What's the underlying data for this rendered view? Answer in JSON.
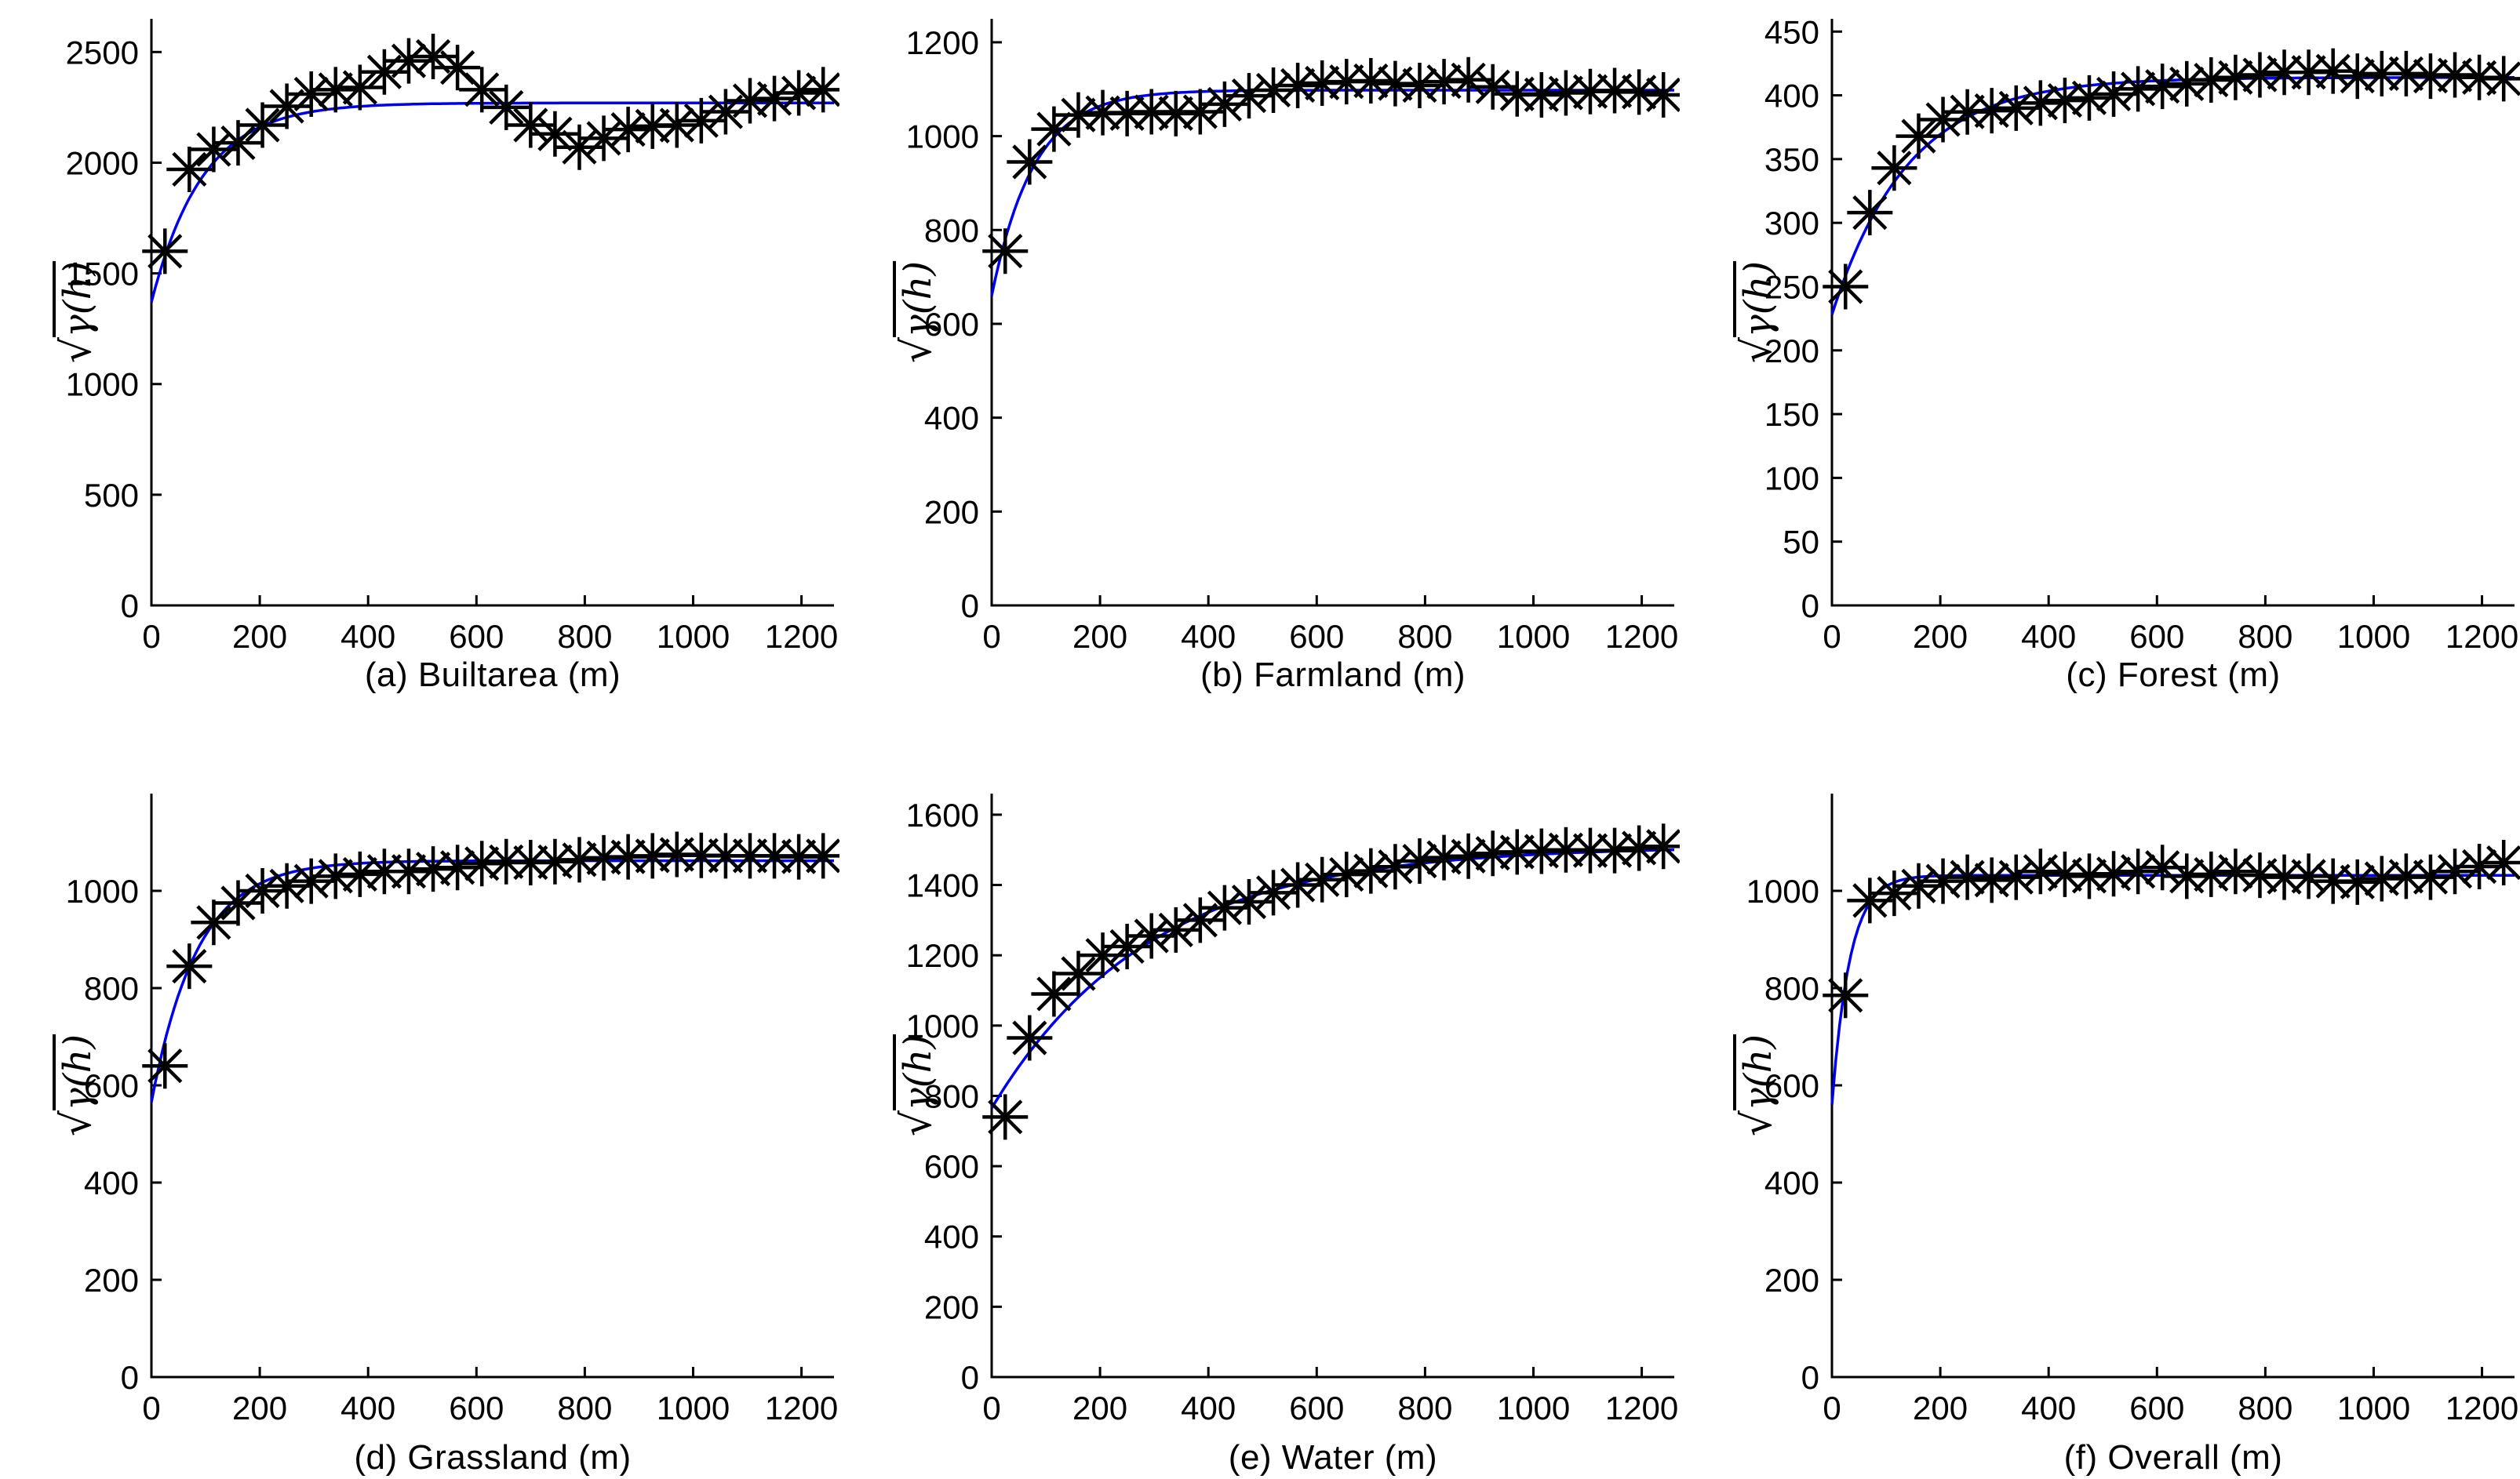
{
  "figure": {
    "background": "#ffffff",
    "description": "Six square-root semivariogram subplots with experimental points (black asterisks) and fitted exponential models (blue curves)"
  },
  "style": {
    "axis_color": "#000000",
    "tick_label_color": "#000000",
    "marker_color": "#000000",
    "fit_line_color": "#0000ee"
  },
  "chart_data": [
    {
      "id": "a",
      "type": "scatter",
      "caption": "(a) Builtarea (m)",
      "ylabel": {
        "radical": "√",
        "expr": "γ(h)"
      },
      "legend": "none",
      "grid": false,
      "xlim": [
        0,
        1260
      ],
      "ylim": [
        0,
        2650
      ],
      "x_ticks": [
        0,
        200,
        400,
        600,
        800,
        1000,
        1200
      ],
      "y_ticks": [
        0,
        500,
        1000,
        1500,
        2000,
        2500
      ],
      "x": [
        25,
        70,
        115,
        160,
        205,
        250,
        295,
        340,
        385,
        430,
        475,
        520,
        565,
        610,
        655,
        700,
        745,
        790,
        835,
        880,
        925,
        970,
        1015,
        1060,
        1105,
        1150,
        1195,
        1240
      ],
      "y": [
        1600,
        1970,
        2060,
        2090,
        2170,
        2255,
        2310,
        2330,
        2340,
        2410,
        2460,
        2480,
        2430,
        2330,
        2250,
        2170,
        2130,
        2070,
        2110,
        2150,
        2165,
        2170,
        2190,
        2230,
        2280,
        2290,
        2315,
        2330
      ],
      "fit": {
        "model": "exponential",
        "y0": 1370,
        "sill": 2270,
        "tau": 95
      }
    },
    {
      "id": "b",
      "type": "scatter",
      "caption": "(b) Farmland (m)",
      "ylabel": {
        "radical": "√",
        "expr": "γ(h)"
      },
      "legend": "none",
      "grid": false,
      "xlim": [
        0,
        1260
      ],
      "ylim": [
        0,
        1250
      ],
      "x_ticks": [
        0,
        200,
        400,
        600,
        800,
        1000,
        1200
      ],
      "y_ticks": [
        0,
        200,
        400,
        600,
        800,
        1000,
        1200
      ],
      "x": [
        25,
        70,
        115,
        160,
        205,
        250,
        295,
        340,
        385,
        430,
        475,
        520,
        565,
        610,
        655,
        700,
        745,
        790,
        835,
        880,
        925,
        970,
        1015,
        1060,
        1105,
        1150,
        1195,
        1240
      ],
      "y": [
        755,
        945,
        1015,
        1045,
        1050,
        1048,
        1052,
        1048,
        1052,
        1068,
        1086,
        1098,
        1108,
        1113,
        1116,
        1118,
        1112,
        1108,
        1116,
        1120,
        1105,
        1090,
        1088,
        1092,
        1095,
        1097,
        1094,
        1088
      ],
      "fit": {
        "model": "exponential",
        "y0": 660,
        "sill": 1098,
        "tau": 78
      }
    },
    {
      "id": "c",
      "type": "scatter",
      "caption": "(c) Forest (m)",
      "ylabel": {
        "radical": "√",
        "expr": "γ(h)"
      },
      "legend": "none",
      "grid": false,
      "xlim": [
        0,
        1260
      ],
      "ylim": [
        0,
        460
      ],
      "x_ticks": [
        0,
        200,
        400,
        600,
        800,
        1000,
        1200
      ],
      "y_ticks": [
        0,
        50,
        100,
        150,
        200,
        250,
        300,
        350,
        400,
        450
      ],
      "x": [
        25,
        70,
        115,
        160,
        205,
        250,
        295,
        340,
        385,
        430,
        475,
        520,
        565,
        610,
        655,
        700,
        745,
        790,
        835,
        880,
        925,
        970,
        1015,
        1060,
        1105,
        1150,
        1195,
        1240
      ],
      "y": [
        250,
        308,
        343,
        368,
        381,
        387,
        388,
        390,
        394,
        396,
        398,
        401,
        405,
        407,
        409,
        412,
        414,
        416,
        418,
        418,
        419,
        415,
        417,
        417,
        415,
        416,
        414,
        413
      ],
      "fit": {
        "model": "exponential",
        "y0": 228,
        "sill": 414,
        "tau": 140
      }
    },
    {
      "id": "d",
      "type": "scatter",
      "caption": "(d) Grassland (m)",
      "ylabel": {
        "radical": "√",
        "expr": "γ(h)"
      },
      "legend": "none",
      "grid": false,
      "xlim": [
        0,
        1260
      ],
      "ylim": [
        0,
        1200
      ],
      "x_ticks": [
        0,
        200,
        400,
        600,
        800,
        1000,
        1200
      ],
      "y_ticks": [
        0,
        200,
        400,
        600,
        800,
        1000
      ],
      "x": [
        25,
        70,
        115,
        160,
        205,
        250,
        295,
        340,
        385,
        430,
        475,
        520,
        565,
        610,
        655,
        700,
        745,
        790,
        835,
        880,
        925,
        970,
        1015,
        1060,
        1105,
        1150,
        1195,
        1240
      ],
      "y": [
        640,
        845,
        935,
        975,
        1000,
        1010,
        1020,
        1030,
        1034,
        1040,
        1040,
        1045,
        1048,
        1056,
        1060,
        1058,
        1060,
        1064,
        1068,
        1070,
        1072,
        1075,
        1073,
        1072,
        1072,
        1072,
        1070,
        1072
      ],
      "fit": {
        "model": "exponential",
        "y0": 565,
        "sill": 1062,
        "tau": 85
      }
    },
    {
      "id": "e",
      "type": "scatter",
      "caption": "(e) Water (m)",
      "ylabel": {
        "radical": "√",
        "expr": "γ(h)"
      },
      "legend": "none",
      "grid": false,
      "xlim": [
        0,
        1260
      ],
      "ylim": [
        0,
        1660
      ],
      "x_ticks": [
        0,
        200,
        400,
        600,
        800,
        1000,
        1200
      ],
      "y_ticks": [
        0,
        200,
        400,
        600,
        800,
        1000,
        1200,
        1400,
        1600
      ],
      "x": [
        25,
        70,
        115,
        160,
        205,
        250,
        295,
        340,
        385,
        430,
        475,
        520,
        565,
        610,
        655,
        700,
        745,
        790,
        835,
        880,
        925,
        970,
        1015,
        1060,
        1105,
        1150,
        1195,
        1240
      ],
      "y": [
        740,
        965,
        1090,
        1148,
        1200,
        1225,
        1255,
        1272,
        1300,
        1335,
        1352,
        1378,
        1400,
        1415,
        1430,
        1440,
        1452,
        1468,
        1478,
        1482,
        1490,
        1494,
        1496,
        1500,
        1498,
        1498,
        1505,
        1510
      ],
      "fit": {
        "model": "exponential",
        "y0": 765,
        "sill": 1510,
        "tau": 290
      }
    },
    {
      "id": "f",
      "type": "scatter",
      "caption": "(f) Overall (m)",
      "ylabel": {
        "radical": "√",
        "expr": "γ(h)"
      },
      "legend": "none",
      "grid": false,
      "xlim": [
        0,
        1260
      ],
      "ylim": [
        0,
        1200
      ],
      "x_ticks": [
        0,
        200,
        400,
        600,
        800,
        1000,
        1200
      ],
      "y_ticks": [
        0,
        200,
        400,
        600,
        800,
        1000
      ],
      "x": [
        25,
        70,
        115,
        160,
        205,
        250,
        295,
        340,
        385,
        430,
        475,
        520,
        565,
        610,
        655,
        700,
        745,
        790,
        835,
        880,
        925,
        970,
        1015,
        1060,
        1105,
        1150,
        1195,
        1240
      ],
      "y": [
        785,
        980,
        995,
        1010,
        1020,
        1028,
        1022,
        1028,
        1040,
        1034,
        1030,
        1035,
        1040,
        1048,
        1030,
        1034,
        1040,
        1032,
        1028,
        1030,
        1020,
        1018,
        1025,
        1030,
        1028,
        1040,
        1050,
        1058
      ],
      "fit": {
        "model": "exponential",
        "y0": 560,
        "sill": 1032,
        "tau": 33
      }
    }
  ]
}
